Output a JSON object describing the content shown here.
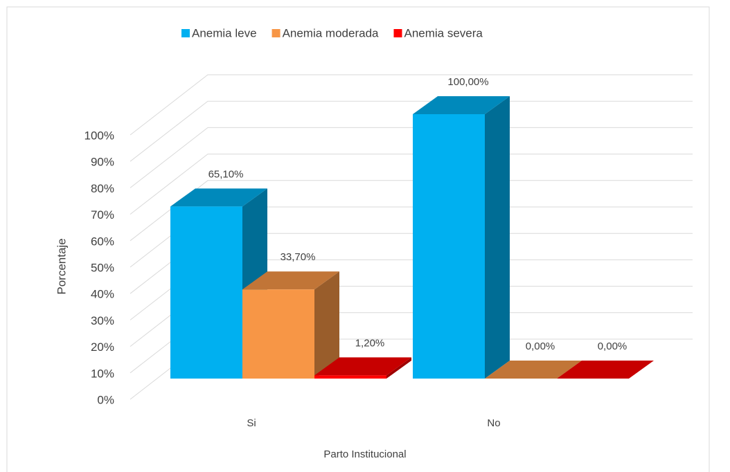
{
  "chart_data": {
    "type": "bar3d",
    "categories": [
      "Si",
      "No"
    ],
    "series": [
      {
        "name": "Anemia leve",
        "color": "#00b0f0",
        "values": [
          65.1,
          100
        ],
        "value_labels": [
          "65,10%",
          "100,00%"
        ]
      },
      {
        "name": "Anemia moderada",
        "color": "#f79646",
        "values": [
          33.7,
          0
        ],
        "value_labels": [
          "33,70%",
          "0,00%"
        ]
      },
      {
        "name": "Anemia severa",
        "color": "#ff0000",
        "values": [
          1.2,
          0
        ],
        "value_labels": [
          "1,20%",
          "0,00%"
        ]
      }
    ],
    "ylim": [
      0,
      100
    ],
    "yticks": [
      {
        "value": 0,
        "label": "0%"
      },
      {
        "value": 10,
        "label": "10%"
      },
      {
        "value": 20,
        "label": "20%"
      },
      {
        "value": 30,
        "label": "30%"
      },
      {
        "value": 40,
        "label": "40%"
      },
      {
        "value": 50,
        "label": "50%"
      },
      {
        "value": 60,
        "label": "60%"
      },
      {
        "value": 70,
        "label": "70%"
      },
      {
        "value": 80,
        "label": "80%"
      },
      {
        "value": 90,
        "label": "90%"
      },
      {
        "value": 100,
        "label": "100%"
      }
    ],
    "ylabel": "Porcentaje",
    "xlabel": "Parto Institucional",
    "grid": true,
    "legend": "top"
  }
}
